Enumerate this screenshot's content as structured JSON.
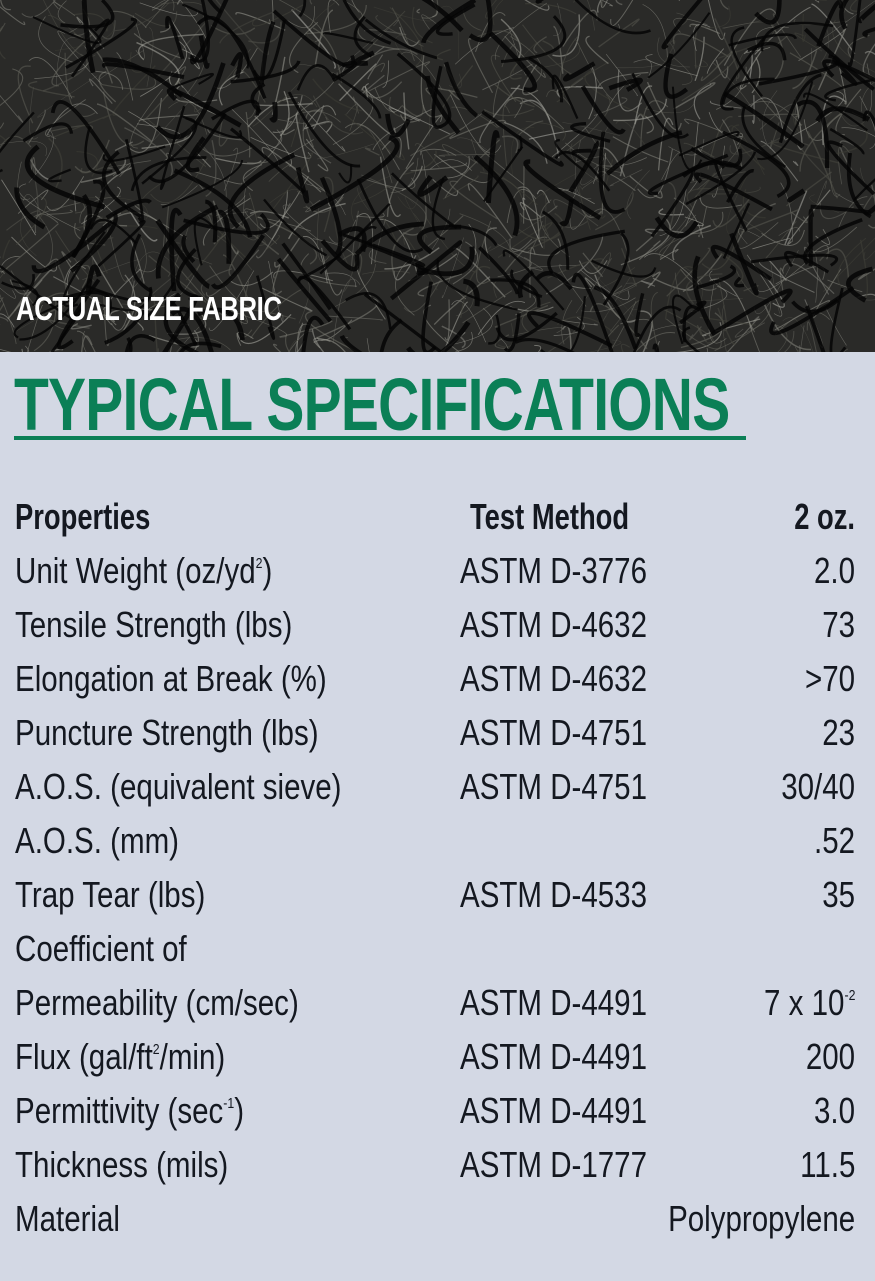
{
  "photo": {
    "caption": "ACTUAL SIZE FABRIC"
  },
  "title": "TYPICAL SPECIFICATIONS",
  "colors": {
    "title_green": "#0b7f56",
    "background": "#d3d8e4",
    "text": "#141820"
  },
  "table": {
    "headers": [
      "Properties",
      "Test Method",
      "2 oz."
    ],
    "rows": [
      {
        "label": "Unit Weight (oz/yd",
        "label_sup": "2",
        "label_post": ")",
        "method": "ASTM D-3776",
        "value": "2.0"
      },
      {
        "label": "Tensile Strength (lbs)",
        "method": "ASTM D-4632",
        "value": "73"
      },
      {
        "label": "Elongation at Break (%)",
        "method": "ASTM D-4632",
        "value": ">70"
      },
      {
        "label": "Puncture Strength (lbs)",
        "method": "ASTM D-4751",
        "value": "23"
      },
      {
        "label": "A.O.S. (equivalent sieve)",
        "method": "ASTM D-4751",
        "value": "30/40"
      },
      {
        "label": "A.O.S. (mm)",
        "method": "",
        "value": ".52"
      },
      {
        "label": "Trap Tear (lbs)",
        "method": "ASTM D-4533",
        "value": "35"
      },
      {
        "label": "Coefficient of",
        "method": "",
        "value": ""
      },
      {
        "label": "Permeability (cm/sec)",
        "method": "ASTM D-4491",
        "value": "7 x 10",
        "value_sup": "-2"
      },
      {
        "label": "Flux (gal/ft",
        "label_sup": "2",
        "label_post": "/min)",
        "method": "ASTM D-4491",
        "value": "200"
      },
      {
        "label": "Permittivity (sec",
        "label_sup": "-1",
        "label_post": ")",
        "method": "ASTM D-4491",
        "value": "3.0"
      },
      {
        "label": "Thickness (mils)",
        "method": "ASTM D-1777",
        "value": "11.5"
      },
      {
        "label": "Material",
        "method": "",
        "value": "Polypropylene"
      }
    ]
  }
}
